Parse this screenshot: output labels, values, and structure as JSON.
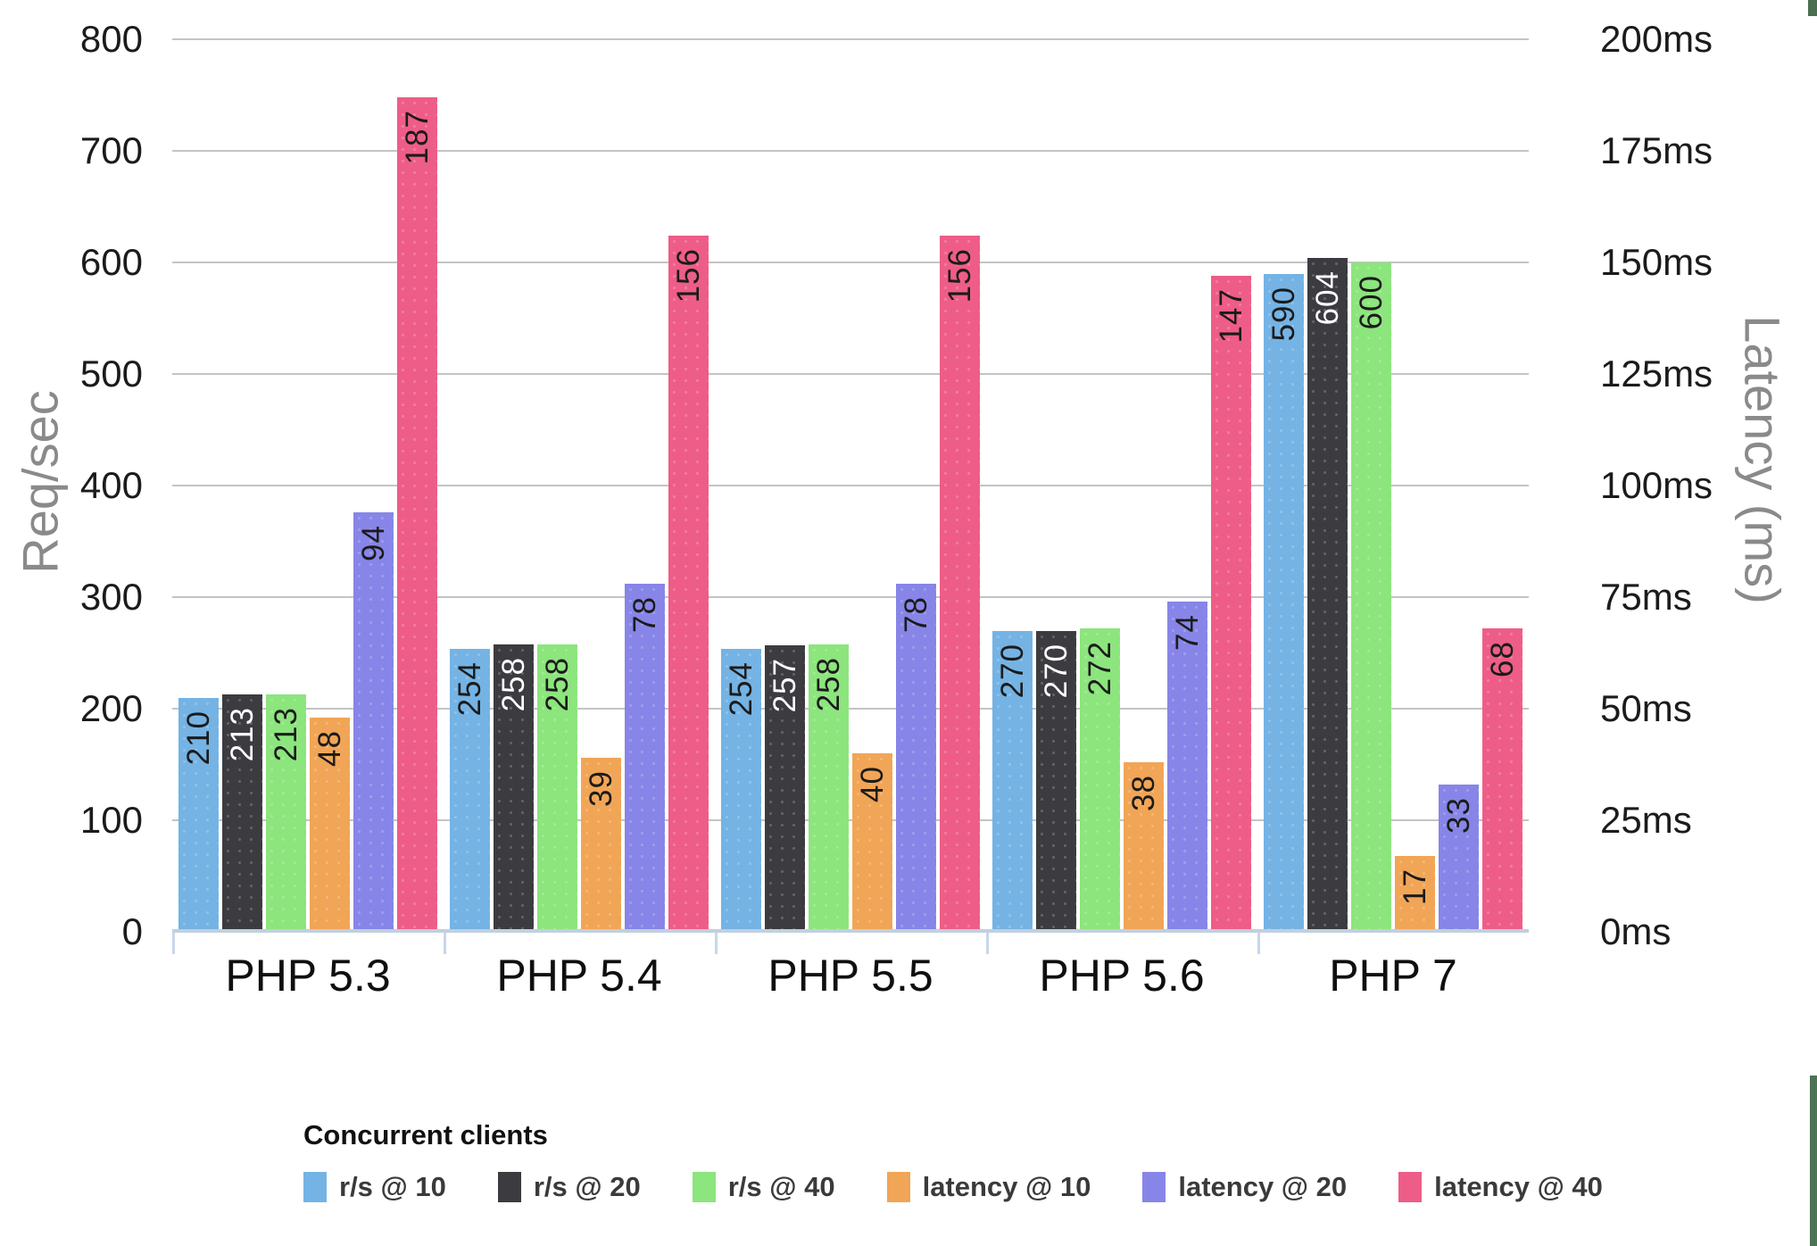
{
  "chart_data": {
    "type": "bar",
    "title": "",
    "categories": [
      "PHP 5.3",
      "PHP 5.4",
      "PHP 5.5",
      "PHP 5.6",
      "PHP 7"
    ],
    "left_axis": {
      "label": "Req/sec",
      "min": 0,
      "max": 800,
      "ticks": [
        "800",
        "700",
        "600",
        "500",
        "400",
        "300",
        "200",
        "100",
        "0"
      ]
    },
    "right_axis": {
      "label": "Latency (ms)",
      "min": 0,
      "max": 200,
      "ticks": [
        "200ms",
        "175ms",
        "150ms",
        "125ms",
        "100ms",
        "75ms",
        "50ms",
        "25ms",
        "0ms"
      ]
    },
    "grid": true,
    "legend": {
      "title": "Concurrent clients",
      "position": "bottom-left"
    },
    "series": [
      {
        "name": "r/s @ 10",
        "axis": "left",
        "color": "#74b3e4",
        "value_label_color": "#1b1b1b",
        "values": [
          210,
          254,
          254,
          270,
          590
        ]
      },
      {
        "name": "r/s @ 20",
        "axis": "left",
        "color": "#3b3b40",
        "value_label_color": "#ffffff",
        "values": [
          213,
          258,
          257,
          270,
          604
        ]
      },
      {
        "name": "r/s @ 40",
        "axis": "left",
        "color": "#8ce57d",
        "value_label_color": "#1b1b1b",
        "values": [
          213,
          258,
          258,
          272,
          600
        ]
      },
      {
        "name": "latency @ 10",
        "axis": "right",
        "color": "#f1a556",
        "value_label_color": "#1b1b1b",
        "values": [
          48,
          39,
          40,
          38,
          17
        ]
      },
      {
        "name": "latency @ 20",
        "axis": "right",
        "color": "#8785e7",
        "value_label_color": "#1b1b1b",
        "values": [
          94,
          78,
          78,
          74,
          33
        ]
      },
      {
        "name": "latency @ 40",
        "axis": "right",
        "color": "#ee5d87",
        "value_label_color": "#1b1b1b",
        "values": [
          187,
          156,
          156,
          147,
          68
        ]
      }
    ],
    "colors": {
      "gridline": "#c4c4c4",
      "baseline": "#c2cfdf",
      "axis_tick": "#c8d7ea",
      "axis_title": "#8a8a8a",
      "tick_label": "#1b1b1b",
      "legend_text": "#3a3a3a"
    }
  },
  "decor": {
    "top_right_square_color": "#4b6f50",
    "right_strip_color": "#4d7354"
  }
}
